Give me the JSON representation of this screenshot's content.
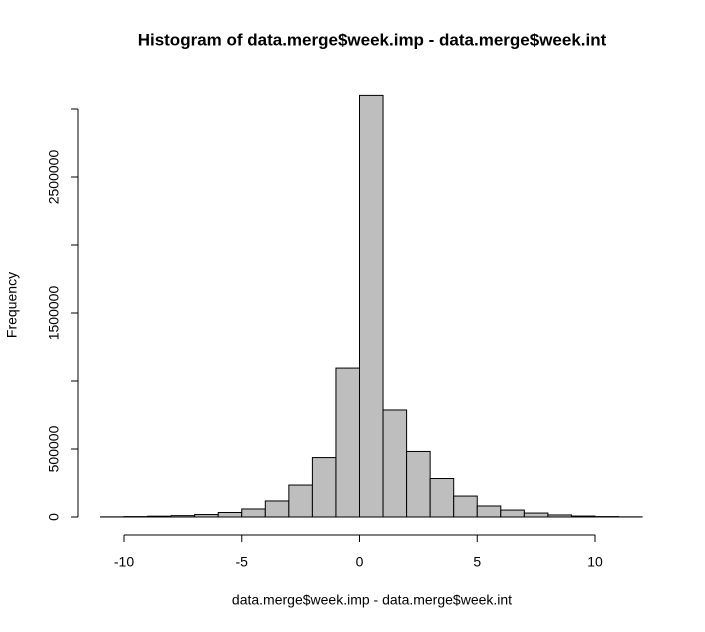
{
  "chart_data": {
    "type": "histogram",
    "title": "Histogram of data.merge$week.imp - data.merge$week.int",
    "x_label": "data.merge$week.imp - data.merge$week.int",
    "y_label": "Frequency",
    "bins": [
      -11,
      -10,
      -9,
      -8,
      -7,
      -6,
      -5,
      -4,
      -3,
      -2,
      -1,
      0,
      1,
      2,
      3,
      4,
      5,
      6,
      7,
      8,
      9,
      10,
      11,
      12
    ],
    "values": [
      1000,
      3000,
      6000,
      10000,
      18000,
      33000,
      59000,
      118000,
      235000,
      437000,
      1095000,
      3100000,
      787000,
      482000,
      283000,
      154000,
      81000,
      51000,
      29000,
      15000,
      7000,
      3000,
      1000
    ],
    "color": "#bebebe",
    "xlim": [
      -10,
      10
    ],
    "xticks": [
      -10,
      -5,
      0,
      5,
      10
    ],
    "ylim": [
      0,
      3000000
    ],
    "yticks": [
      0,
      500000,
      {
        "value": 1000000,
        "label": null
      },
      1500000,
      {
        "value": 2000000,
        "label": null
      },
      2500000,
      {
        "value": 3000000,
        "label": null
      }
    ]
  }
}
